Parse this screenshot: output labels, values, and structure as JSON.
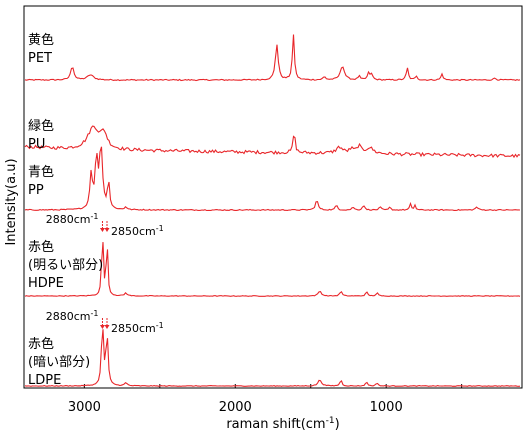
{
  "chart_data": {
    "type": "line",
    "xlabel": "raman shift(cm",
    "xlabel_sup": "-1",
    "xlabel_end": ")",
    "ylabel": "Intensity(a.u)",
    "x_reversed": true,
    "xlim": [
      3400,
      100
    ],
    "xticks": [
      {
        "value": 3000,
        "label": "3000"
      },
      {
        "value": 2000,
        "label": "2000"
      },
      {
        "value": 1000,
        "label": "1000"
      }
    ],
    "minor_xticks": [
      3000,
      2500,
      2000,
      1500,
      1000,
      500
    ],
    "grid": false,
    "line_color": "#e8262a",
    "series": [
      {
        "label_lines": [
          "黄色",
          "PET"
        ],
        "baseline": 0,
        "slope": 0,
        "noise": 0.6,
        "peaks": [
          [
            3080,
            14,
            12
          ],
          [
            2960,
            5,
            25
          ],
          [
            1725,
            36,
            11
          ],
          [
            1615,
            45,
            8
          ],
          [
            1410,
            3,
            10
          ],
          [
            1290,
            14,
            16
          ],
          [
            1180,
            4,
            8
          ],
          [
            1115,
            7,
            10
          ],
          [
            1095,
            5,
            8
          ],
          [
            860,
            12,
            8
          ],
          [
            800,
            4,
            8
          ],
          [
            630,
            6,
            8
          ],
          [
            280,
            2,
            10
          ]
        ]
      },
      {
        "label_lines": [
          "緑色",
          "PU"
        ],
        "baseline": 4,
        "slope": 7,
        "noise": 1.6,
        "peaks": [
          [
            3400,
            2,
            200
          ],
          [
            2940,
            22,
            45
          ],
          [
            2870,
            14,
            25
          ],
          [
            1610,
            21,
            8
          ],
          [
            1310,
            6,
            25
          ],
          [
            1230,
            4,
            20
          ],
          [
            1180,
            7,
            15
          ],
          [
            1110,
            6,
            30
          ]
        ]
      },
      {
        "label_lines": [
          "青色",
          "PP"
        ],
        "baseline": 0,
        "slope": 0,
        "noise": 0.5,
        "peaks": [
          [
            2955,
            35,
            10
          ],
          [
            2920,
            50,
            10
          ],
          [
            2890,
            63,
            12
          ],
          [
            2840,
            28,
            8
          ],
          [
            2725,
            3,
            8
          ],
          [
            1460,
            10,
            10
          ],
          [
            1330,
            5,
            8
          ],
          [
            1220,
            3,
            8
          ],
          [
            1150,
            5,
            8
          ],
          [
            1040,
            3,
            8
          ],
          [
            975,
            3,
            6
          ],
          [
            840,
            6,
            6
          ],
          [
            810,
            5,
            6
          ],
          [
            400,
            3,
            10
          ]
        ]
      },
      {
        "label_lines": [
          "赤色",
          "(明るい部分)",
          "HDPE"
        ],
        "baseline": 0,
        "slope": 0,
        "noise": 0.35,
        "peaks": [
          [
            2880,
            68,
            6
          ],
          [
            2850,
            58,
            6
          ],
          [
            2725,
            3,
            10
          ],
          [
            1440,
            5,
            12
          ],
          [
            1300,
            5,
            8
          ],
          [
            1130,
            4,
            8
          ],
          [
            1060,
            3,
            8
          ]
        ]
      },
      {
        "label_lines": [
          "赤色",
          "(暗い部分)",
          "LDPE"
        ],
        "baseline": 0,
        "slope": 0,
        "noise": 0.35,
        "peaks": [
          [
            2880,
            62,
            8
          ],
          [
            2850,
            52,
            8
          ],
          [
            2725,
            3,
            10
          ],
          [
            1440,
            6,
            14
          ],
          [
            1300,
            6,
            8
          ],
          [
            1130,
            4,
            8
          ],
          [
            1060,
            3,
            8
          ]
        ]
      }
    ],
    "annotations": [
      {
        "series": 3,
        "text": "2880cm",
        "sup": "-1",
        "x": 2880,
        "side": "left"
      },
      {
        "series": 3,
        "text": "2850cm",
        "sup": "-1",
        "x": 2850,
        "side": "right"
      },
      {
        "series": 4,
        "text": "2880cm",
        "sup": "-1",
        "x": 2880,
        "side": "left"
      },
      {
        "series": 4,
        "text": "2850cm",
        "sup": "-1",
        "x": 2850,
        "side": "right"
      }
    ]
  }
}
